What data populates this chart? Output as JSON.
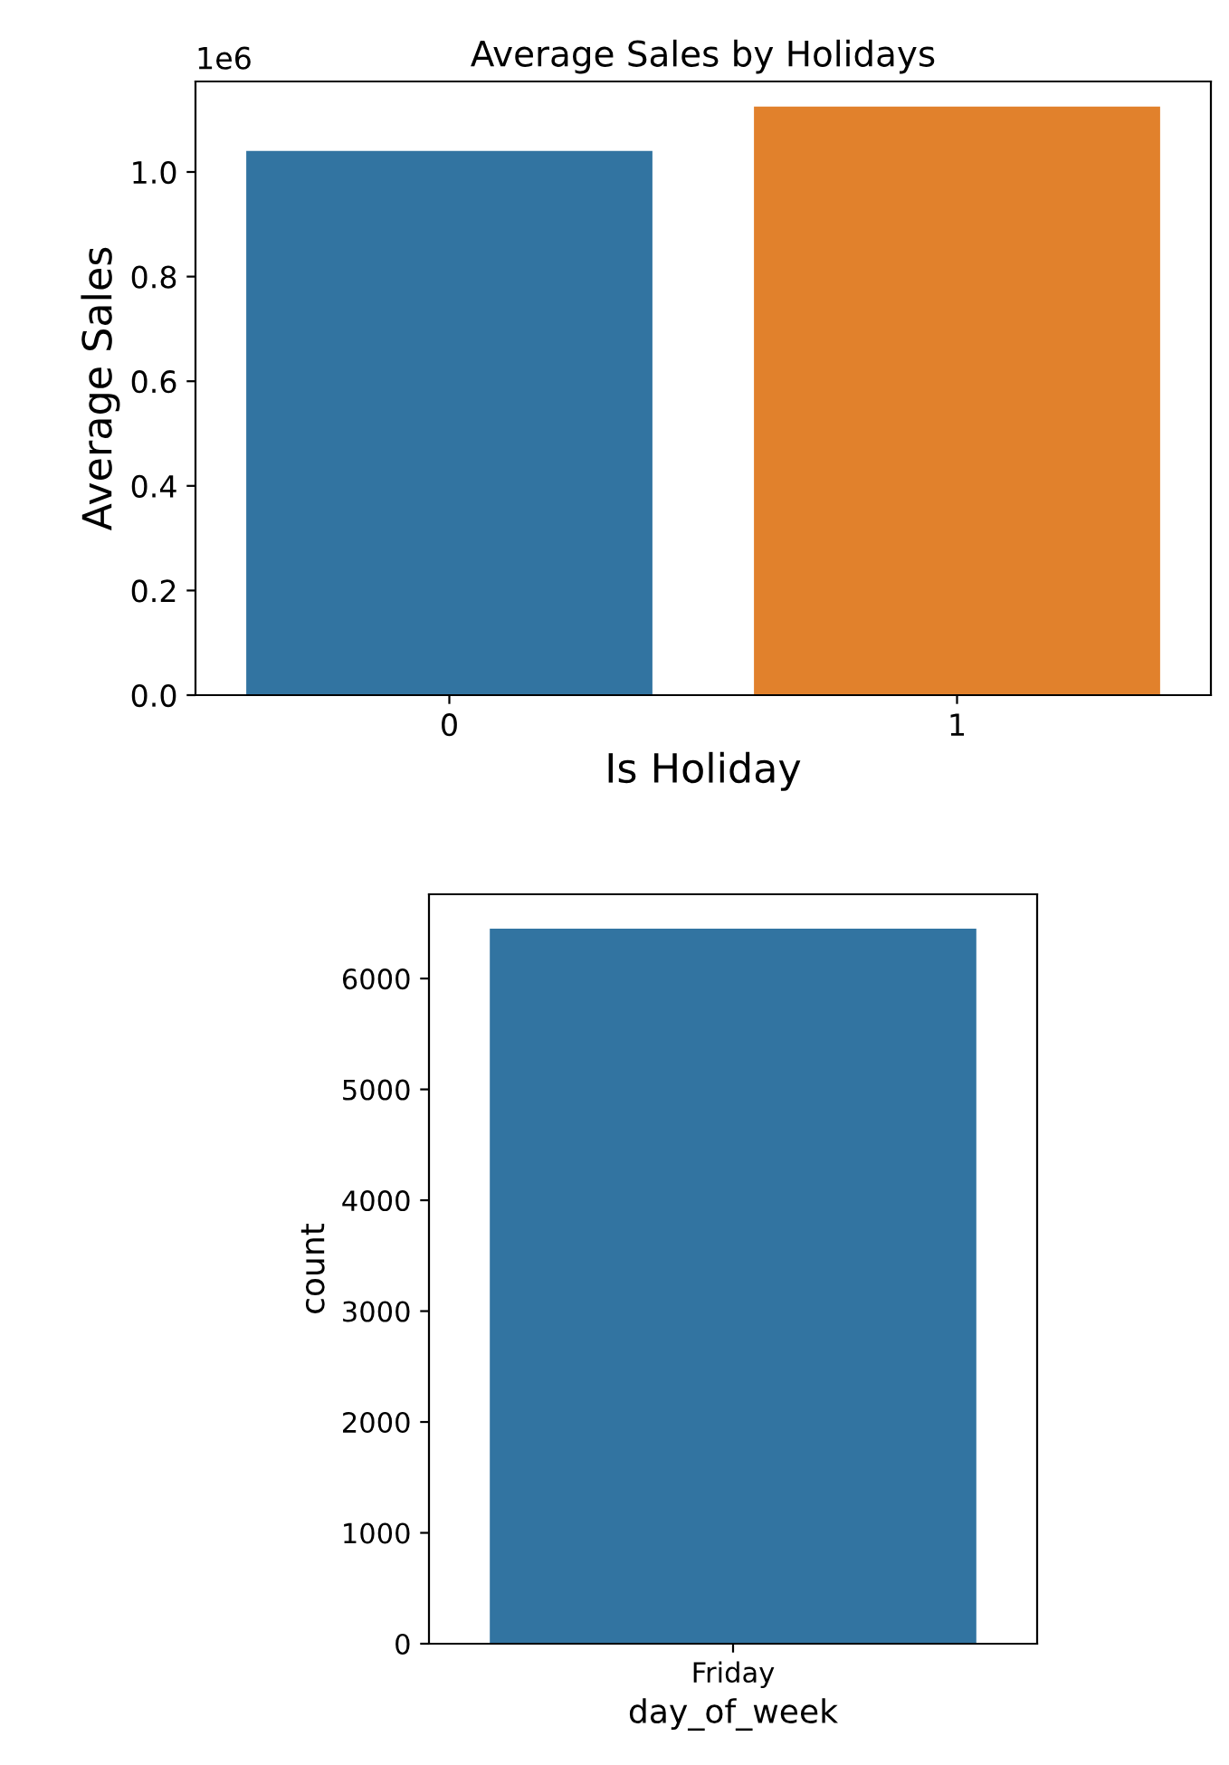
{
  "chart_data": [
    {
      "type": "bar",
      "title": "Average Sales by Holidays",
      "xlabel": "Is Holiday",
      "ylabel": "Average Sales",
      "categories": [
        "0",
        "1"
      ],
      "values": [
        1.04,
        1.125
      ],
      "colors": [
        "#3274a1",
        "#e1812c"
      ],
      "ylim": [
        0,
        1.173
      ],
      "yticks": [
        {
          "value": 0,
          "label": "0.0"
        },
        {
          "value": 0.2,
          "label": "0.2"
        },
        {
          "value": 0.4,
          "label": "0.4"
        },
        {
          "value": 0.6,
          "label": "0.6"
        },
        {
          "value": 0.8,
          "label": "0.8"
        },
        {
          "value": 1,
          "label": "1.0"
        }
      ],
      "annotations": [
        "1e6"
      ],
      "grid": false,
      "legend": false
    },
    {
      "type": "bar",
      "xlabel": "day_of_week",
      "ylabel": "count",
      "categories": [
        "Friday"
      ],
      "values": [
        6450
      ],
      "colors": [
        "#3274a1"
      ],
      "ylim": [
        0,
        6760
      ],
      "yticks": [
        0,
        1000,
        2000,
        3000,
        4000,
        5000,
        6000
      ],
      "grid": false,
      "legend": false
    }
  ]
}
